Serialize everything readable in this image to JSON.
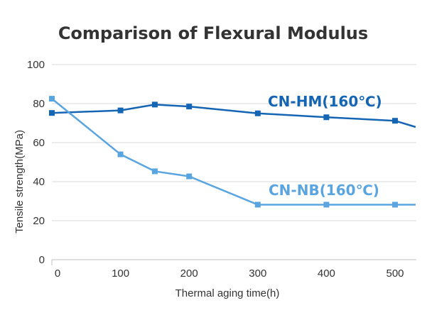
{
  "chart_data": {
    "type": "line",
    "title": "Comparison of Flexural Modulus",
    "xlabel": "Thermal aging time(h)",
    "ylabel": "Tensile strength(MPa)",
    "xlim": [
      0,
      530
    ],
    "ylim": [
      0,
      100
    ],
    "xticks": [
      0,
      100,
      200,
      300,
      400,
      500
    ],
    "yticks": [
      0,
      20,
      40,
      60,
      80,
      100
    ],
    "grid": true,
    "series": [
      {
        "name": "CN-HM(160℃)",
        "color": "#1565b5",
        "x": [
          0,
          100,
          150,
          200,
          300,
          400,
          500
        ],
        "y": [
          75.2,
          76.5,
          79.5,
          78.5,
          75.0,
          73.0,
          71.2
        ],
        "line_end": {
          "x": 530,
          "y": 68.0
        }
      },
      {
        "name": "CN-NB(160℃)",
        "color": "#5aa5e0",
        "x": [
          0,
          100,
          150,
          200,
          300,
          400,
          500
        ],
        "y": [
          82.5,
          54.0,
          45.3,
          42.7,
          28.2,
          28.2,
          28.2
        ],
        "line_end": {
          "x": 530,
          "y": 28.2
        }
      }
    ]
  }
}
